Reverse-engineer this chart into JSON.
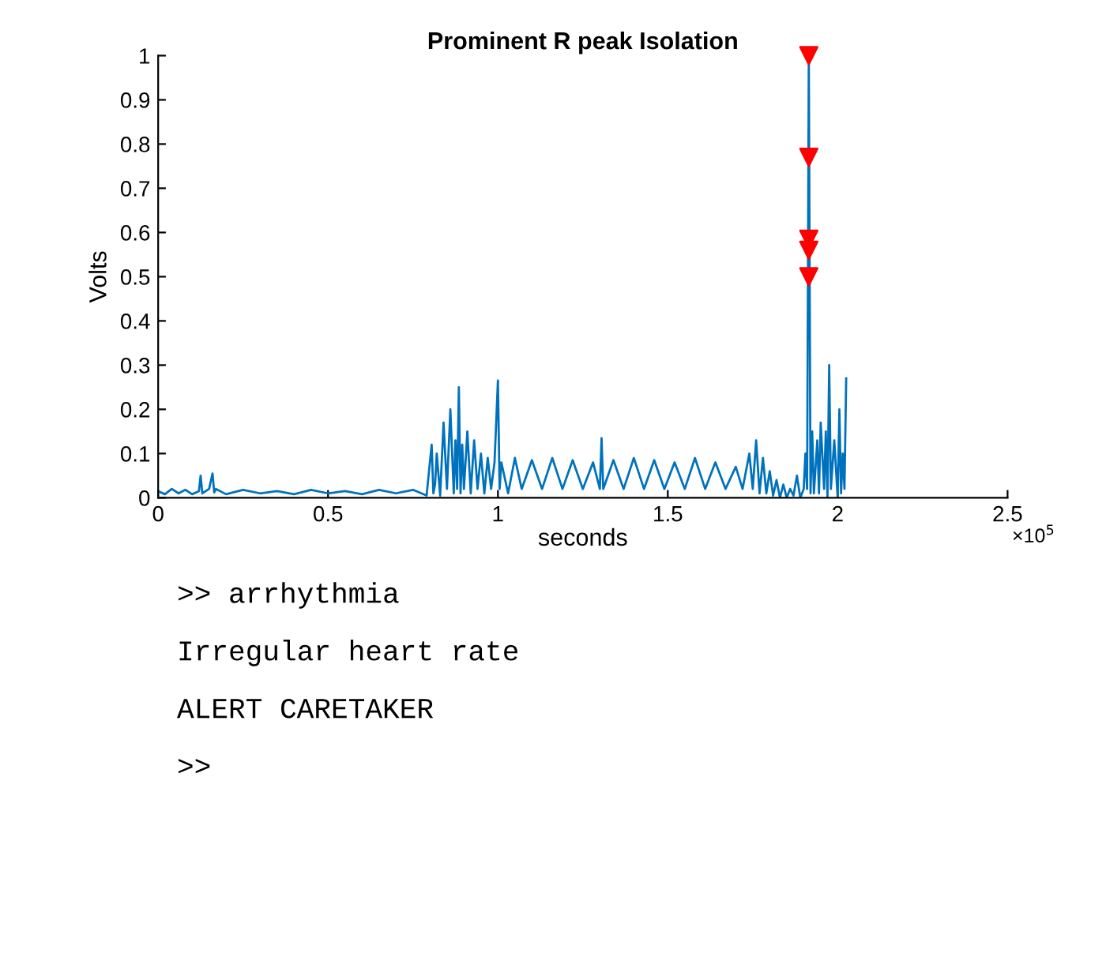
{
  "chart_data": {
    "type": "line",
    "title": "Prominent R peak Isolation",
    "xlabel": "seconds",
    "ylabel": "Volts",
    "xlim": [
      0,
      2.5
    ],
    "ylim": [
      0,
      1
    ],
    "xticks": [
      0,
      0.5,
      1,
      1.5,
      2,
      2.5
    ],
    "yticks": [
      0,
      0.1,
      0.2,
      0.3,
      0.4,
      0.5,
      0.6,
      0.7,
      0.8,
      0.9,
      1
    ],
    "grid": false,
    "legend": false,
    "series": [
      {
        "color": "#0072bd",
        "marker": "none",
        "line_style": "solid",
        "x": [
          0,
          0.02,
          0.04,
          0.06,
          0.08,
          0.1,
          0.12,
          0.125,
          0.13,
          0.15,
          0.16,
          0.165,
          0.17,
          0.2,
          0.25,
          0.3,
          0.35,
          0.4,
          0.45,
          0.5,
          0.55,
          0.6,
          0.65,
          0.7,
          0.75,
          0.79,
          0.805,
          0.81,
          0.815,
          0.82,
          0.83,
          0.84,
          0.85,
          0.86,
          0.87,
          0.875,
          0.88,
          0.885,
          0.89,
          0.895,
          0.9,
          0.91,
          0.92,
          0.93,
          0.94,
          0.95,
          0.96,
          0.97,
          0.98,
          0.99,
          1.0,
          1.005,
          1.01,
          1.03,
          1.05,
          1.07,
          1.1,
          1.13,
          1.16,
          1.19,
          1.22,
          1.25,
          1.28,
          1.3,
          1.305,
          1.31,
          1.34,
          1.37,
          1.4,
          1.43,
          1.46,
          1.49,
          1.52,
          1.55,
          1.58,
          1.61,
          1.64,
          1.67,
          1.7,
          1.72,
          1.74,
          1.75,
          1.76,
          1.77,
          1.78,
          1.79,
          1.8,
          1.81,
          1.82,
          1.83,
          1.84,
          1.85,
          1.86,
          1.87,
          1.88,
          1.89,
          1.9,
          1.905,
          1.91,
          1.915,
          1.92,
          1.925,
          1.93,
          1.94,
          1.945,
          1.95,
          1.96,
          1.965,
          1.97,
          1.975,
          1.98,
          1.99,
          2.0,
          2.005,
          2.01,
          2.015,
          2.02,
          2.025
        ],
        "values": [
          0.015,
          0.008,
          0.02,
          0.01,
          0.018,
          0.008,
          0.015,
          0.05,
          0.01,
          0.02,
          0.055,
          0.012,
          0.02,
          0.008,
          0.018,
          0.01,
          0.015,
          0.008,
          0.018,
          0.01,
          0.015,
          0.008,
          0.018,
          0.01,
          0.018,
          0.005,
          0.12,
          0.01,
          0.03,
          0.1,
          0.005,
          0.17,
          0.02,
          0.2,
          0.01,
          0.13,
          0.02,
          0.25,
          0.01,
          0.12,
          0.02,
          0.15,
          0.01,
          0.13,
          0.02,
          0.1,
          0.01,
          0.09,
          0.02,
          0.08,
          0.265,
          0.02,
          0.08,
          0.01,
          0.09,
          0.02,
          0.085,
          0.02,
          0.09,
          0.02,
          0.085,
          0.02,
          0.08,
          0.02,
          0.135,
          0.02,
          0.085,
          0.02,
          0.09,
          0.02,
          0.085,
          0.02,
          0.08,
          0.02,
          0.09,
          0.02,
          0.08,
          0.02,
          0.07,
          0.02,
          0.1,
          0.02,
          0.13,
          0.01,
          0.09,
          0.01,
          0.06,
          0.005,
          0.04,
          0.0,
          0.03,
          0.0,
          0.02,
          0.005,
          0.05,
          0.0,
          0.02,
          0.1,
          0.02,
          1.0,
          0.01,
          0.15,
          0.01,
          0.13,
          0.01,
          0.17,
          0.02,
          0.15,
          0.0,
          0.3,
          0.02,
          0.13,
          0.0,
          0.2,
          0.01,
          0.1,
          0.02,
          0.27
        ]
      },
      {
        "type": "scatter",
        "color": "#ff0000",
        "marker": "triangle",
        "x": [
          1.915,
          1.915,
          1.915,
          1.915,
          1.915
        ],
        "values": [
          1,
          0.77,
          0.585,
          0.56,
          0.5
        ]
      }
    ],
    "annotations": [
      "×10$^{5}$",
      ">> arrhythmia",
      "Irregular heart rate",
      "ALERT CARETAKER",
      ">>"
    ]
  }
}
